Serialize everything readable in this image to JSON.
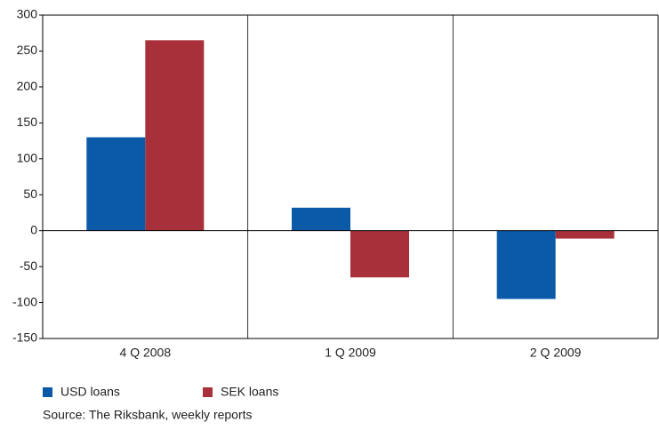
{
  "chart_data": {
    "type": "bar",
    "categories": [
      "4 Q 2008",
      "1 Q 2009",
      "2 Q 2009"
    ],
    "series": [
      {
        "name": "USD loans",
        "color": "#0a5aa8",
        "values": [
          130,
          32,
          -95
        ]
      },
      {
        "name": "SEK loans",
        "color": "#a8303a",
        "values": [
          265,
          -65,
          -11
        ]
      }
    ],
    "ylim": [
      -150,
      300
    ],
    "yticks": [
      -150,
      -100,
      -50,
      0,
      50,
      100,
      150,
      200,
      250,
      300
    ],
    "grid": false,
    "legend": "bottom-left",
    "source": "Source: The Riksbank, weekly reports"
  }
}
